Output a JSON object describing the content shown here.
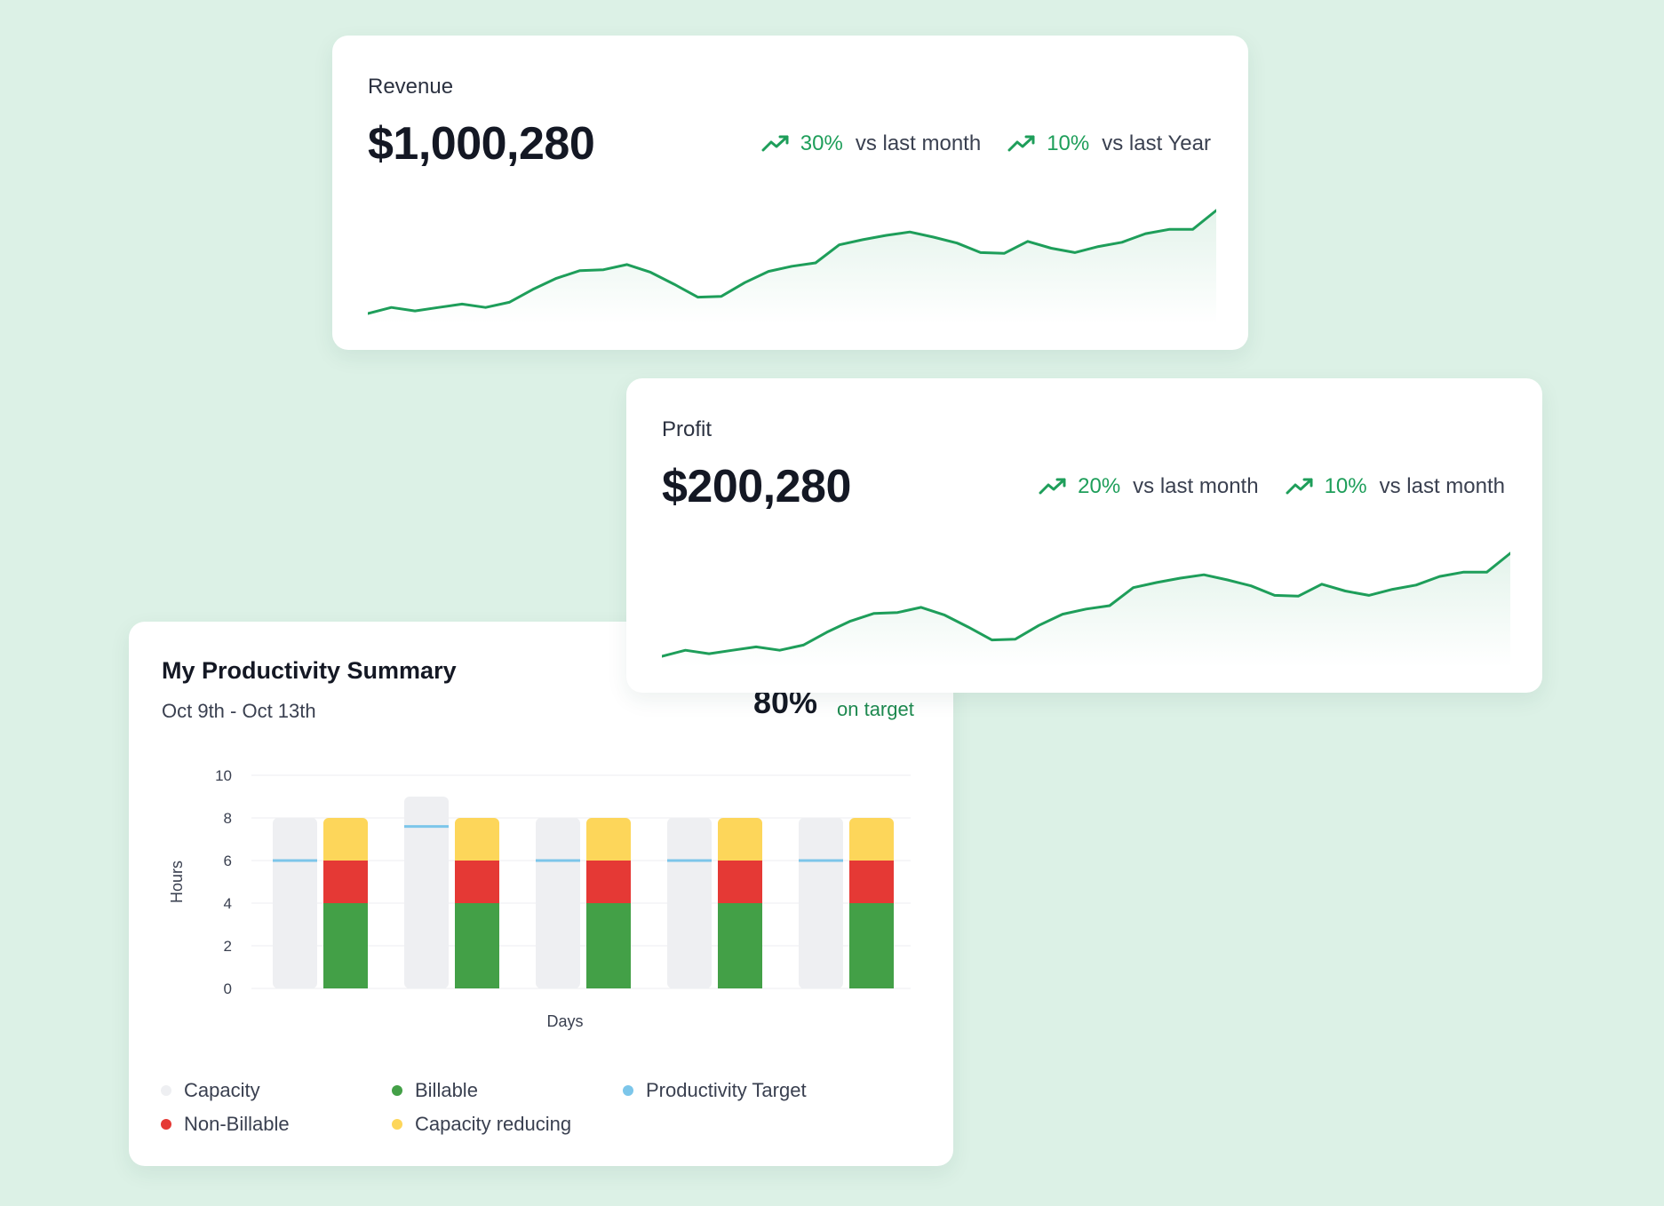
{
  "revenue": {
    "label": "Revenue",
    "value": "$1,000,280",
    "stats": [
      {
        "pct": "30%",
        "compare": "vs last month",
        "icon": "trend-up-icon"
      },
      {
        "pct": "10%",
        "compare": "vs last Year",
        "icon": "trend-up-icon"
      }
    ],
    "sparkline": [
      2,
      9,
      5,
      9,
      13,
      9,
      15,
      30,
      43,
      52,
      53,
      59,
      50,
      36,
      21,
      22,
      38,
      51,
      57,
      61,
      82,
      88,
      93,
      97,
      91,
      84,
      73,
      72,
      86,
      78,
      73,
      80,
      85,
      95,
      100,
      100,
      122
    ]
  },
  "profit": {
    "label": "Profit",
    "value": "$200,280",
    "stats": [
      {
        "pct": "20%",
        "compare": "vs last month",
        "icon": "trend-up-icon"
      },
      {
        "pct": "10%",
        "compare": "vs last month",
        "icon": "trend-up-icon"
      }
    ],
    "sparkline": [
      2,
      9,
      5,
      9,
      13,
      9,
      15,
      30,
      43,
      52,
      53,
      59,
      50,
      36,
      21,
      22,
      38,
      51,
      57,
      61,
      82,
      88,
      93,
      97,
      91,
      84,
      73,
      72,
      86,
      78,
      73,
      80,
      85,
      95,
      100,
      100,
      122
    ]
  },
  "productivity": {
    "title": "My Productivity Summary",
    "date_range": "Oct 9th - Oct 13th",
    "percent": "80%",
    "status": "on target",
    "legend": [
      {
        "label": "Capacity",
        "color": "#eeeff2"
      },
      {
        "label": "Billable",
        "color": "#43a047"
      },
      {
        "label": "Productivity Target",
        "color": "#7cc6ea"
      },
      {
        "label": "Non-Billable",
        "color": "#e53935"
      },
      {
        "label": "Capacity reducing",
        "color": "#fdd65a"
      }
    ]
  },
  "chart_data": {
    "type": "bar",
    "xlabel": "Days",
    "ylabel": "Hours",
    "ylim": [
      0,
      10
    ],
    "yticks": [
      0,
      2,
      4,
      6,
      8,
      10
    ],
    "categories": [
      "",
      "",
      "",
      "",
      ""
    ],
    "grid": true,
    "capacity": [
      8,
      9,
      8,
      8,
      8
    ],
    "productivity_target": [
      6,
      7.6,
      6,
      6,
      6
    ],
    "series": [
      {
        "name": "Billable",
        "values": [
          4,
          4,
          4,
          4,
          4
        ],
        "color": "#43a047"
      },
      {
        "name": "Non-Billable",
        "values": [
          2,
          2,
          2,
          2,
          2
        ],
        "color": "#e53935"
      },
      {
        "name": "Capacity reducing",
        "values": [
          2,
          2,
          2,
          2,
          2
        ],
        "color": "#fdd65a"
      }
    ],
    "colors": {
      "capacity": "#eeeff2",
      "target": "#7cc6ea",
      "grid": "#eceef0"
    }
  }
}
